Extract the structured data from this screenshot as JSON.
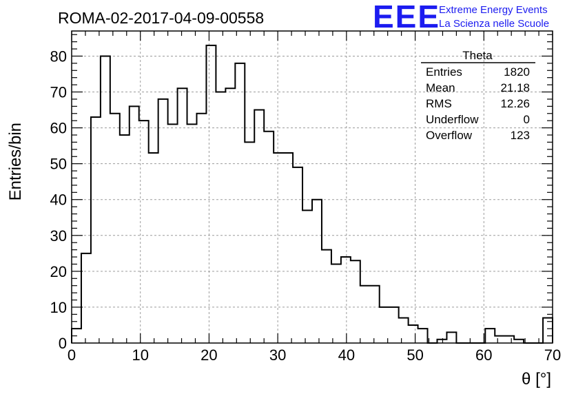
{
  "chart_data": {
    "type": "bar",
    "title": "ROMA-02-2017-04-09-00558",
    "xlabel": "θ [°]",
    "ylabel": "Entries/bin",
    "xlim": [
      0,
      70
    ],
    "ylim": [
      0,
      87
    ],
    "grid": true,
    "bin_width": 1.4,
    "x_ticks": [
      0,
      10,
      20,
      30,
      40,
      50,
      60,
      70
    ],
    "y_ticks": [
      0,
      10,
      20,
      30,
      40,
      50,
      60,
      70,
      80
    ],
    "values": [
      4,
      25,
      63,
      80,
      64,
      58,
      66,
      62,
      53,
      68,
      61,
      71,
      61,
      64,
      83,
      70,
      71,
      78,
      56,
      65,
      59,
      53,
      53,
      49,
      37,
      40,
      26,
      22,
      24,
      23,
      16,
      16,
      10,
      10,
      7,
      5,
      4,
      0,
      1,
      3,
      0,
      0,
      0,
      4,
      2,
      2,
      1,
      0,
      0,
      7
    ]
  },
  "stats_box": {
    "title": "Theta",
    "rows": [
      {
        "label": "Entries",
        "value": "1820"
      },
      {
        "label": "Mean",
        "value": "21.18"
      },
      {
        "label": "RMS",
        "value": "12.26"
      },
      {
        "label": "Underflow",
        "value": "0"
      },
      {
        "label": "Overflow",
        "value": "123"
      }
    ]
  },
  "logo": {
    "letters": "EEE",
    "line1": "Extreme Energy Events",
    "line2": "La Scienza nelle Scuole",
    "color": "#1c1cf0"
  }
}
